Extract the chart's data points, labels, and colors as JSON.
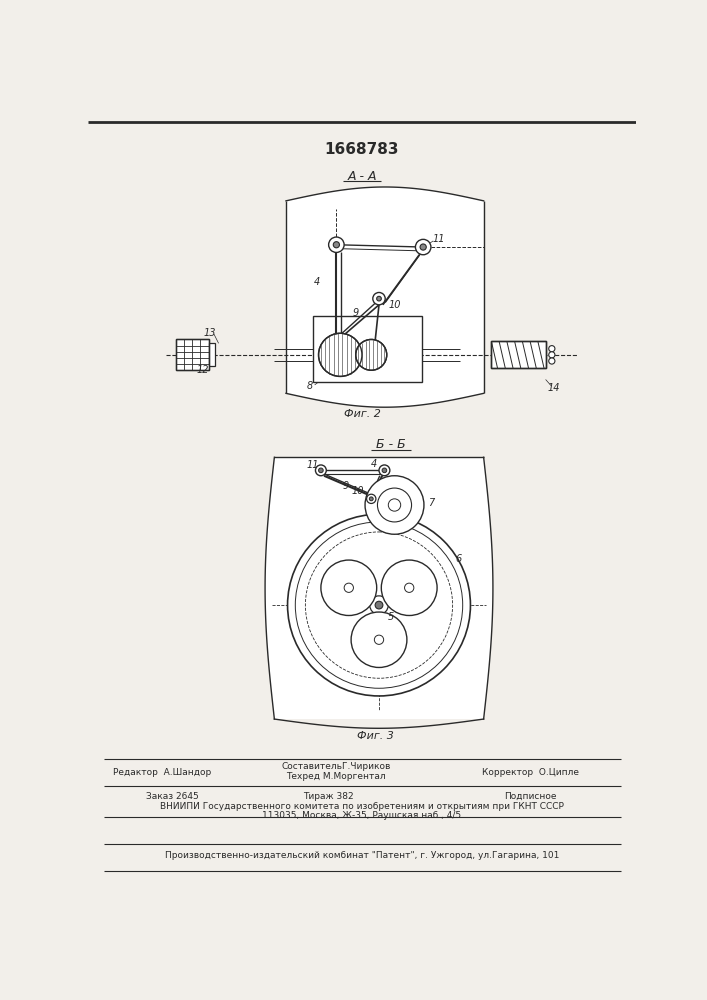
{
  "patent_number": "1668783",
  "fig2_label": "А - А",
  "fig2_caption": "Фиг. 2",
  "fig3_label": "Б - Б",
  "fig3_caption": "Фиг. 3",
  "footer_line1_left": "Редактор  А.Шандор",
  "footer_line1_center_top": "СоставительГ.Чириков",
  "footer_line1_center": "Техред М.Моргентал",
  "footer_line1_right": "Корректор  О.Ципле",
  "footer_line2_left": "Заказ 2645",
  "footer_line2_center": "Тираж 382",
  "footer_line2_right": "Подписное",
  "footer_line3": "ВНИИПИ Государственного комитета по изобретениям и открытиям при ГКНТ СССР",
  "footer_line4": "113035, Москва, Ж-35, Раушская наб., 4/5",
  "footer_line5": "Производственно-издательский комбинат \"Патент\", г. Ужгород, ул.Гагарина, 101",
  "bg_color": "#f2efea",
  "line_color": "#2a2a2a",
  "white": "#ffffff"
}
